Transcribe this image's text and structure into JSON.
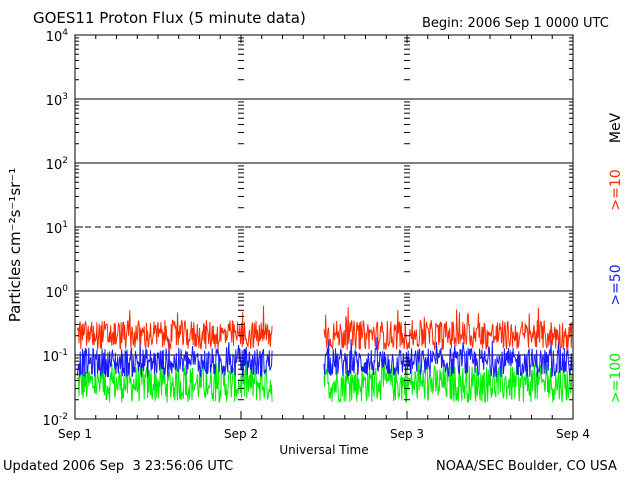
{
  "chart_data": {
    "type": "line",
    "title": "GOES11 Proton Flux (5 minute data)",
    "begin": "Begin: 2006 Sep 1 0000 UTC",
    "xlabel": "Universal Time",
    "ylabel": "Particles cm⁻²s⁻¹sr⁻¹",
    "y_scale": "log",
    "ylim": [
      0.01,
      10000
    ],
    "y_ticks": [
      {
        "base": "10",
        "exp": "-2",
        "value": 0.01
      },
      {
        "base": "10",
        "exp": "-1",
        "value": 0.1
      },
      {
        "base": "10",
        "exp": "0",
        "value": 1
      },
      {
        "base": "10",
        "exp": "1",
        "value": 10
      },
      {
        "base": "10",
        "exp": "2",
        "value": 100
      },
      {
        "base": "10",
        "exp": "3",
        "value": 1000
      },
      {
        "base": "10",
        "exp": "4",
        "value": 10000
      }
    ],
    "x_tick_labels": [
      "Sep 1",
      "Sep 2",
      "Sep 3",
      "Sep 4"
    ],
    "xlim": [
      "2006-09-01T00:00",
      "2006-09-04T00:00"
    ],
    "threshold_lines": [
      {
        "value": 10,
        "style": "dashed"
      },
      {
        "value": 1,
        "style": "solid"
      },
      {
        "value": 100,
        "style": "solid"
      },
      {
        "value": 1000,
        "style": "solid"
      },
      {
        "value": 0.1,
        "style": "solid"
      }
    ],
    "series_unit": "MeV",
    "data_gap": [
      "2006-09-02T04:30",
      "2006-09-02T12:00"
    ],
    "series": [
      {
        "name": ">=10",
        "color": "#ff2a00",
        "typical_range": [
          0.12,
          0.35
        ],
        "peak": 0.6
      },
      {
        "name": ">=50",
        "color": "#1a1aff",
        "typical_range": [
          0.045,
          0.13
        ],
        "peak": 0.2
      },
      {
        "name": ">=100",
        "color": "#00ee00",
        "typical_range": [
          0.018,
          0.07
        ],
        "peak": 0.08
      }
    ]
  },
  "footer": {
    "updated": "Updated 2006 Sep  3 23:56:06 UTC",
    "credit": "NOAA/SEC Boulder, CO USA"
  }
}
